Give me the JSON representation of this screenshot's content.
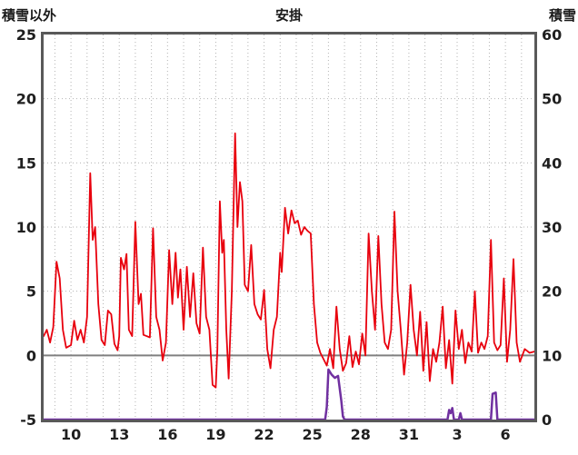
{
  "chart_data": {
    "type": "line",
    "title": "安掛",
    "left_axis": {
      "title": "積雪以外",
      "min": -5,
      "max": 25,
      "ticks": [
        25,
        20,
        15,
        10,
        5,
        0,
        -5
      ]
    },
    "right_axis": {
      "title": "積雪",
      "min": 0,
      "max": 60,
      "ticks": [
        60,
        50,
        40,
        30,
        20,
        10,
        0
      ]
    },
    "x_axis": {
      "min": 8.3,
      "max": 38.8,
      "tick_positions": [
        10,
        13,
        16,
        19,
        22,
        25,
        28,
        31,
        34,
        37
      ],
      "tick_labels": [
        "10",
        "13",
        "16",
        "19",
        "22",
        "25",
        "28",
        "31",
        "3",
        "6"
      ],
      "grid_interval": 1
    },
    "zero_line_value": 0,
    "colors": {
      "frame": "#595959",
      "grid": "#b3b3b3",
      "zero_line": "#808080",
      "series_red": "#e8000d",
      "series_purple": "#7030a0",
      "text": "#1f1f1f"
    },
    "series": [
      {
        "name": "積雪以外",
        "axis": "left",
        "color": "#e8000d",
        "width": 1.8,
        "points": [
          [
            8.3,
            1.5
          ],
          [
            8.5,
            2.0
          ],
          [
            8.7,
            1.0
          ],
          [
            8.9,
            2.2
          ],
          [
            9.1,
            7.3
          ],
          [
            9.3,
            6.0
          ],
          [
            9.5,
            2.0
          ],
          [
            9.7,
            0.6
          ],
          [
            10.0,
            0.8
          ],
          [
            10.2,
            2.7
          ],
          [
            10.4,
            1.2
          ],
          [
            10.6,
            2.0
          ],
          [
            10.8,
            1.0
          ],
          [
            11.0,
            3.0
          ],
          [
            11.2,
            14.2
          ],
          [
            11.35,
            9.0
          ],
          [
            11.5,
            10.0
          ],
          [
            11.7,
            4.0
          ],
          [
            11.9,
            1.2
          ],
          [
            12.1,
            0.8
          ],
          [
            12.3,
            3.5
          ],
          [
            12.5,
            3.2
          ],
          [
            12.7,
            0.9
          ],
          [
            12.9,
            0.4
          ],
          [
            13.0,
            1.5
          ],
          [
            13.1,
            7.6
          ],
          [
            13.3,
            6.7
          ],
          [
            13.45,
            7.9
          ],
          [
            13.6,
            2.0
          ],
          [
            13.8,
            1.5
          ],
          [
            14.0,
            10.4
          ],
          [
            14.2,
            4.0
          ],
          [
            14.35,
            4.8
          ],
          [
            14.5,
            1.6
          ],
          [
            14.7,
            1.5
          ],
          [
            14.9,
            1.4
          ],
          [
            15.1,
            9.9
          ],
          [
            15.3,
            3.0
          ],
          [
            15.5,
            2.0
          ],
          [
            15.7,
            -0.4
          ],
          [
            15.9,
            1.0
          ],
          [
            16.1,
            8.2
          ],
          [
            16.3,
            4.0
          ],
          [
            16.5,
            8.0
          ],
          [
            16.65,
            4.5
          ],
          [
            16.8,
            6.7
          ],
          [
            17.0,
            2.0
          ],
          [
            17.2,
            6.9
          ],
          [
            17.4,
            3.0
          ],
          [
            17.6,
            6.4
          ],
          [
            17.8,
            2.5
          ],
          [
            18.0,
            1.7
          ],
          [
            18.2,
            8.4
          ],
          [
            18.4,
            3.0
          ],
          [
            18.6,
            2.0
          ],
          [
            18.8,
            -2.3
          ],
          [
            19.0,
            -2.5
          ],
          [
            19.1,
            0.5
          ],
          [
            19.25,
            12.0
          ],
          [
            19.4,
            8.0
          ],
          [
            19.5,
            9.0
          ],
          [
            19.65,
            2.0
          ],
          [
            19.8,
            -1.8
          ],
          [
            20.0,
            5.0
          ],
          [
            20.2,
            17.3
          ],
          [
            20.35,
            10.0
          ],
          [
            20.5,
            13.5
          ],
          [
            20.65,
            12.0
          ],
          [
            20.8,
            5.5
          ],
          [
            21.0,
            5.0
          ],
          [
            21.2,
            8.6
          ],
          [
            21.4,
            4.0
          ],
          [
            21.6,
            3.2
          ],
          [
            21.8,
            2.8
          ],
          [
            22.0,
            5.1
          ],
          [
            22.2,
            0.5
          ],
          [
            22.4,
            -1.0
          ],
          [
            22.6,
            2.0
          ],
          [
            22.8,
            3.0
          ],
          [
            23.0,
            8.0
          ],
          [
            23.1,
            6.5
          ],
          [
            23.3,
            11.5
          ],
          [
            23.5,
            9.5
          ],
          [
            23.7,
            11.3
          ],
          [
            23.9,
            10.3
          ],
          [
            24.1,
            10.5
          ],
          [
            24.3,
            9.4
          ],
          [
            24.5,
            10.0
          ],
          [
            24.7,
            9.7
          ],
          [
            24.9,
            9.5
          ],
          [
            25.1,
            4.0
          ],
          [
            25.3,
            1.0
          ],
          [
            25.5,
            0.2
          ],
          [
            25.7,
            -0.3
          ],
          [
            25.9,
            -0.8
          ],
          [
            26.1,
            0.5
          ],
          [
            26.3,
            -1.0
          ],
          [
            26.5,
            3.8
          ],
          [
            26.7,
            0.5
          ],
          [
            26.9,
            -1.2
          ],
          [
            27.1,
            -0.6
          ],
          [
            27.3,
            1.5
          ],
          [
            27.5,
            -0.9
          ],
          [
            27.7,
            0.3
          ],
          [
            27.9,
            -0.7
          ],
          [
            28.1,
            1.7
          ],
          [
            28.3,
            0.0
          ],
          [
            28.5,
            9.5
          ],
          [
            28.7,
            5.0
          ],
          [
            28.9,
            2.0
          ],
          [
            29.1,
            9.3
          ],
          [
            29.3,
            4.0
          ],
          [
            29.5,
            1.0
          ],
          [
            29.7,
            0.5
          ],
          [
            29.9,
            2.0
          ],
          [
            30.1,
            11.2
          ],
          [
            30.3,
            5.0
          ],
          [
            30.5,
            2.0
          ],
          [
            30.7,
            -1.5
          ],
          [
            30.9,
            1.0
          ],
          [
            31.1,
            5.5
          ],
          [
            31.3,
            2.0
          ],
          [
            31.5,
            0.0
          ],
          [
            31.7,
            3.4
          ],
          [
            31.9,
            -1.2
          ],
          [
            32.1,
            2.6
          ],
          [
            32.3,
            -2.0
          ],
          [
            32.5,
            0.5
          ],
          [
            32.7,
            -0.5
          ],
          [
            32.9,
            1.0
          ],
          [
            33.1,
            3.8
          ],
          [
            33.3,
            -1.0
          ],
          [
            33.5,
            1.2
          ],
          [
            33.7,
            -2.2
          ],
          [
            33.9,
            3.5
          ],
          [
            34.1,
            0.5
          ],
          [
            34.3,
            2.0
          ],
          [
            34.5,
            -0.6
          ],
          [
            34.7,
            1.0
          ],
          [
            34.9,
            0.3
          ],
          [
            35.1,
            5.0
          ],
          [
            35.3,
            0.2
          ],
          [
            35.5,
            1.0
          ],
          [
            35.7,
            0.5
          ],
          [
            35.9,
            1.5
          ],
          [
            36.1,
            9.0
          ],
          [
            36.3,
            1.0
          ],
          [
            36.5,
            0.4
          ],
          [
            36.7,
            0.8
          ],
          [
            36.9,
            6.0
          ],
          [
            37.1,
            -0.5
          ],
          [
            37.3,
            2.0
          ],
          [
            37.5,
            7.5
          ],
          [
            37.7,
            1.0
          ],
          [
            37.9,
            -0.5
          ],
          [
            38.2,
            0.5
          ],
          [
            38.5,
            0.2
          ],
          [
            38.8,
            0.3
          ]
        ]
      },
      {
        "name": "積雪",
        "axis": "right",
        "color": "#7030a0",
        "width": 2.5,
        "points": [
          [
            8.3,
            0
          ],
          [
            25.8,
            0
          ],
          [
            25.9,
            2.0
          ],
          [
            26.0,
            7.8
          ],
          [
            26.2,
            7.0
          ],
          [
            26.4,
            6.5
          ],
          [
            26.6,
            6.8
          ],
          [
            26.8,
            3.0
          ],
          [
            26.9,
            0.5
          ],
          [
            27.0,
            0
          ],
          [
            33.4,
            0
          ],
          [
            33.5,
            1.5
          ],
          [
            33.6,
            1.0
          ],
          [
            33.7,
            1.8
          ],
          [
            33.8,
            0
          ],
          [
            34.1,
            0
          ],
          [
            34.2,
            1.0
          ],
          [
            34.3,
            0
          ],
          [
            36.1,
            0
          ],
          [
            36.2,
            4.0
          ],
          [
            36.4,
            4.2
          ],
          [
            36.5,
            0
          ],
          [
            38.8,
            0
          ]
        ]
      }
    ]
  }
}
